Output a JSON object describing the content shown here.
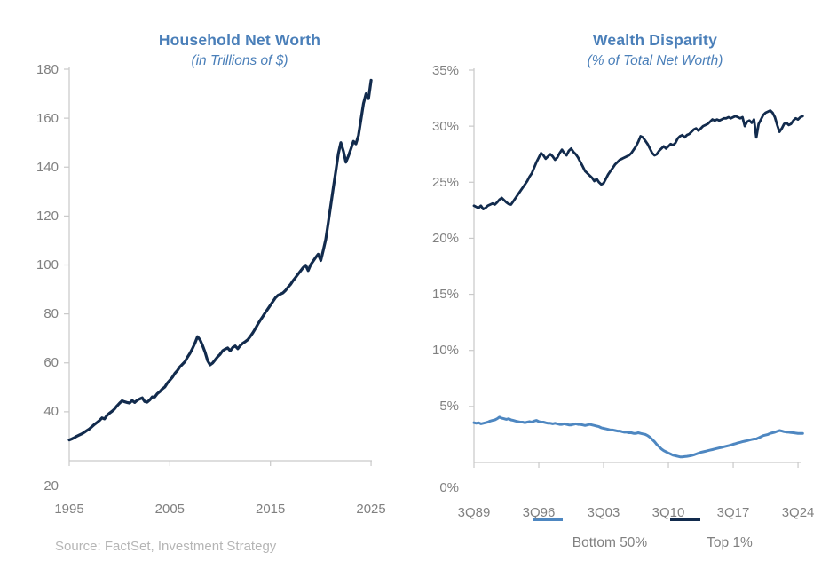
{
  "colors": {
    "title_blue": "#4a7fb9",
    "navy": "#122b4d",
    "light_blue": "#4e87c1",
    "axis_line": "#c9c9c9",
    "tick_label": "#808080",
    "source_gray": "#b5b5b5",
    "background": "#ffffff"
  },
  "source_note": "Source: FactSet, Investment Strategy",
  "chart_data": [
    {
      "type": "line",
      "title": "Household Net Worth",
      "subtitle": "(in Trillions of $)",
      "ylabel": "Trillions of $",
      "ylim": [
        20,
        180
      ],
      "y_tick_step": 20,
      "y_tick_labels": [
        "180",
        "160",
        "140",
        "120",
        "100",
        "80",
        "60",
        "40",
        "20"
      ],
      "x_tick_labels": [
        "1995",
        "2005",
        "2015",
        "2025"
      ],
      "x_tick_years": [
        1995,
        2005,
        2015,
        2025
      ],
      "x_start_year": 1995.0,
      "x_step_years": 0.25,
      "grid": false,
      "series": [
        {
          "name": "Household Net Worth",
          "color_key": "navy",
          "values": [
            28.5,
            28.9,
            29.4,
            30.0,
            30.5,
            31.0,
            31.6,
            32.3,
            33.0,
            33.9,
            34.8,
            35.6,
            36.4,
            37.5,
            37.1,
            38.5,
            39.4,
            40.2,
            41.1,
            42.4,
            43.5,
            44.5,
            44.1,
            43.8,
            43.6,
            44.6,
            43.8,
            44.7,
            45.2,
            45.7,
            44.2,
            43.9,
            44.8,
            46.1,
            46.0,
            47.4,
            48.2,
            49.3,
            50.1,
            51.7,
            52.9,
            54.1,
            55.7,
            56.9,
            58.4,
            59.4,
            60.5,
            62.3,
            63.9,
            65.9,
            68.1,
            70.7,
            69.4,
            67.1,
            64.4,
            60.9,
            59.2,
            59.9,
            61.2,
            62.5,
            63.5,
            65.0,
            65.6,
            66.1,
            64.9,
            66.3,
            66.9,
            65.8,
            67.1,
            68.0,
            68.7,
            69.5,
            70.8,
            72.3,
            74.0,
            75.8,
            77.5,
            79.0,
            80.6,
            82.1,
            83.6,
            85.1,
            86.6,
            87.6,
            88.1,
            88.6,
            89.6,
            90.9,
            92.1,
            93.6,
            94.9,
            96.3,
            97.6,
            98.9,
            99.9,
            97.7,
            100.1,
            101.6,
            103.1,
            104.4,
            101.8,
            106.0,
            110.5,
            117.5,
            124.5,
            131.5,
            138.5,
            145.5,
            150.0,
            146.5,
            142.0,
            144.5,
            147.5,
            150.5,
            149.5,
            153.0,
            159.5,
            166.0,
            170.0,
            168.0,
            175.5
          ]
        }
      ]
    },
    {
      "type": "line",
      "title": "Wealth Disparity",
      "subtitle": "(% of Total Net Worth)",
      "ylabel": "% of Total Net Worth",
      "ylim": [
        0,
        35
      ],
      "y_tick_step": 5,
      "y_tick_labels": [
        "35%",
        "30%",
        "25%",
        "20%",
        "15%",
        "10%",
        "5%",
        "0%"
      ],
      "x_tick_labels": [
        "3Q89",
        "3Q96",
        "3Q03",
        "3Q10",
        "3Q17",
        "3Q24"
      ],
      "x_tick_years": [
        1989.75,
        1996.75,
        2003.75,
        2010.75,
        2017.75,
        2024.75
      ],
      "x_start_year": 1989.75,
      "x_step_years": 0.25,
      "grid": false,
      "legend_position": "bottom",
      "series": [
        {
          "name": "Bottom 50%",
          "color_key": "light_blue",
          "values": [
            3.55,
            3.5,
            3.55,
            3.45,
            3.5,
            3.55,
            3.6,
            3.7,
            3.75,
            3.8,
            3.9,
            4.05,
            3.95,
            3.9,
            3.85,
            3.9,
            3.8,
            3.75,
            3.7,
            3.65,
            3.6,
            3.6,
            3.55,
            3.6,
            3.65,
            3.6,
            3.7,
            3.75,
            3.65,
            3.6,
            3.6,
            3.55,
            3.5,
            3.5,
            3.45,
            3.5,
            3.45,
            3.4,
            3.4,
            3.45,
            3.4,
            3.35,
            3.35,
            3.4,
            3.45,
            3.4,
            3.4,
            3.35,
            3.3,
            3.35,
            3.4,
            3.35,
            3.3,
            3.25,
            3.2,
            3.1,
            3.05,
            3.0,
            2.95,
            2.9,
            2.9,
            2.85,
            2.8,
            2.8,
            2.75,
            2.7,
            2.7,
            2.65,
            2.65,
            2.6,
            2.6,
            2.65,
            2.6,
            2.55,
            2.5,
            2.4,
            2.25,
            2.05,
            1.85,
            1.6,
            1.4,
            1.2,
            1.05,
            0.95,
            0.85,
            0.75,
            0.65,
            0.6,
            0.55,
            0.5,
            0.5,
            0.52,
            0.55,
            0.58,
            0.62,
            0.68,
            0.75,
            0.82,
            0.9,
            0.95,
            1.0,
            1.05,
            1.1,
            1.15,
            1.2,
            1.25,
            1.3,
            1.35,
            1.4,
            1.45,
            1.5,
            1.55,
            1.62,
            1.68,
            1.75,
            1.8,
            1.85,
            1.9,
            1.95,
            2.0,
            2.05,
            2.1,
            2.1,
            2.2,
            2.3,
            2.4,
            2.45,
            2.5,
            2.6,
            2.65,
            2.7,
            2.78,
            2.85,
            2.8,
            2.75,
            2.72,
            2.7,
            2.68,
            2.65,
            2.62,
            2.6,
            2.6,
            2.6
          ]
        },
        {
          "name": "Top 1%",
          "color_key": "navy",
          "values": [
            22.9,
            22.8,
            22.7,
            22.9,
            22.6,
            22.7,
            22.9,
            23.0,
            23.1,
            23.0,
            23.2,
            23.45,
            23.6,
            23.4,
            23.2,
            23.05,
            23.0,
            23.3,
            23.6,
            23.9,
            24.2,
            24.5,
            24.8,
            25.1,
            25.5,
            25.8,
            26.3,
            26.8,
            27.2,
            27.6,
            27.4,
            27.1,
            27.3,
            27.5,
            27.3,
            27.0,
            27.2,
            27.6,
            27.9,
            27.6,
            27.4,
            27.8,
            28.0,
            27.7,
            27.5,
            27.2,
            26.8,
            26.4,
            26.0,
            25.8,
            25.6,
            25.4,
            25.1,
            25.3,
            25.0,
            24.8,
            24.9,
            25.3,
            25.7,
            26.0,
            26.3,
            26.6,
            26.8,
            27.0,
            27.1,
            27.2,
            27.3,
            27.4,
            27.6,
            27.9,
            28.2,
            28.6,
            29.1,
            29.0,
            28.7,
            28.4,
            28.0,
            27.6,
            27.4,
            27.5,
            27.8,
            28.0,
            28.2,
            28.0,
            28.2,
            28.4,
            28.3,
            28.5,
            28.9,
            29.1,
            29.2,
            29.0,
            29.2,
            29.3,
            29.5,
            29.7,
            29.8,
            29.6,
            29.8,
            30.0,
            30.1,
            30.2,
            30.4,
            30.6,
            30.5,
            30.6,
            30.5,
            30.6,
            30.7,
            30.7,
            30.8,
            30.7,
            30.8,
            30.9,
            30.8,
            30.7,
            30.8,
            30.0,
            30.4,
            30.5,
            30.3,
            30.6,
            29.0,
            30.2,
            30.6,
            31.0,
            31.2,
            31.3,
            31.4,
            31.2,
            30.8,
            30.1,
            29.5,
            29.8,
            30.2,
            30.3,
            30.1,
            30.2,
            30.5,
            30.7,
            30.6,
            30.8,
            30.9
          ]
        }
      ]
    }
  ]
}
